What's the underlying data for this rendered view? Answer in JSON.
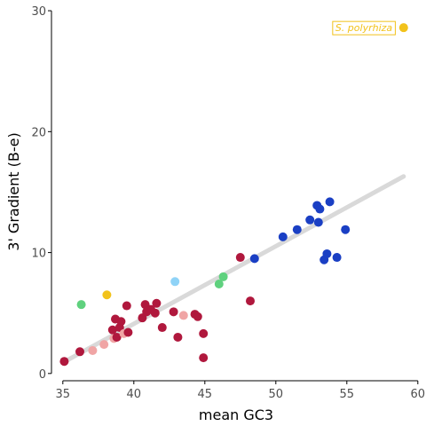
{
  "chart_data": {
    "type": "scatter",
    "title": "",
    "xlabel": "mean GC3",
    "ylabel": "3' Gradient (B-e)",
    "xlim": [
      34.2,
      60.2
    ],
    "ylim": [
      -0.6,
      30.3
    ],
    "xticks": [
      35,
      40,
      45,
      50,
      55,
      60
    ],
    "yticks": [
      0,
      10,
      20,
      30
    ],
    "grid": false,
    "legend": "none",
    "colors": {
      "crimson": "#b0183d",
      "pink": "#f0a5a5",
      "green": "#5fd17e",
      "lightblue": "#8fd3f7",
      "blue": "#1a3fc4",
      "gold": "#f2c21b",
      "trend": "#d9d9d9"
    },
    "trend_line": {
      "x": [
        35,
        59
      ],
      "y": [
        0.9,
        16.3
      ]
    },
    "points": [
      {
        "x": 35.1,
        "y": 1.0,
        "color": "crimson"
      },
      {
        "x": 36.2,
        "y": 1.8,
        "color": "crimson"
      },
      {
        "x": 36.3,
        "y": 5.7,
        "color": "green"
      },
      {
        "x": 37.1,
        "y": 1.9,
        "color": "pink"
      },
      {
        "x": 37.9,
        "y": 2.4,
        "color": "pink"
      },
      {
        "x": 38.1,
        "y": 6.5,
        "color": "gold"
      },
      {
        "x": 38.5,
        "y": 3.6,
        "color": "crimson"
      },
      {
        "x": 38.6,
        "y": 2.9,
        "color": "pink"
      },
      {
        "x": 38.7,
        "y": 4.5,
        "color": "crimson"
      },
      {
        "x": 38.8,
        "y": 3.0,
        "color": "crimson"
      },
      {
        "x": 39.0,
        "y": 3.8,
        "color": "crimson"
      },
      {
        "x": 39.1,
        "y": 4.3,
        "color": "crimson"
      },
      {
        "x": 39.3,
        "y": 3.3,
        "color": "pink"
      },
      {
        "x": 39.5,
        "y": 5.6,
        "color": "crimson"
      },
      {
        "x": 39.6,
        "y": 3.4,
        "color": "crimson"
      },
      {
        "x": 40.6,
        "y": 4.6,
        "color": "crimson"
      },
      {
        "x": 40.8,
        "y": 5.7,
        "color": "crimson"
      },
      {
        "x": 40.9,
        "y": 5.1,
        "color": "crimson"
      },
      {
        "x": 41.2,
        "y": 5.3,
        "color": "crimson"
      },
      {
        "x": 41.5,
        "y": 5.0,
        "color": "crimson"
      },
      {
        "x": 41.6,
        "y": 5.8,
        "color": "crimson"
      },
      {
        "x": 42.0,
        "y": 3.8,
        "color": "crimson"
      },
      {
        "x": 42.8,
        "y": 5.1,
        "color": "crimson"
      },
      {
        "x": 42.9,
        "y": 7.6,
        "color": "lightblue"
      },
      {
        "x": 43.1,
        "y": 3.0,
        "color": "crimson"
      },
      {
        "x": 43.5,
        "y": 4.8,
        "color": "pink"
      },
      {
        "x": 44.3,
        "y": 4.9,
        "color": "crimson"
      },
      {
        "x": 44.5,
        "y": 4.7,
        "color": "crimson"
      },
      {
        "x": 44.9,
        "y": 3.3,
        "color": "crimson"
      },
      {
        "x": 44.9,
        "y": 1.3,
        "color": "crimson"
      },
      {
        "x": 46.0,
        "y": 7.4,
        "color": "green"
      },
      {
        "x": 46.3,
        "y": 8.0,
        "color": "green"
      },
      {
        "x": 47.5,
        "y": 9.6,
        "color": "crimson"
      },
      {
        "x": 48.2,
        "y": 6.0,
        "color": "crimson"
      },
      {
        "x": 48.5,
        "y": 9.5,
        "color": "blue"
      },
      {
        "x": 50.5,
        "y": 11.3,
        "color": "blue"
      },
      {
        "x": 51.5,
        "y": 11.9,
        "color": "blue"
      },
      {
        "x": 52.4,
        "y": 12.7,
        "color": "blue"
      },
      {
        "x": 52.9,
        "y": 13.9,
        "color": "blue"
      },
      {
        "x": 53.0,
        "y": 12.5,
        "color": "blue"
      },
      {
        "x": 53.1,
        "y": 13.6,
        "color": "blue"
      },
      {
        "x": 53.4,
        "y": 9.4,
        "color": "blue"
      },
      {
        "x": 53.6,
        "y": 9.9,
        "color": "blue"
      },
      {
        "x": 53.8,
        "y": 14.2,
        "color": "blue"
      },
      {
        "x": 54.3,
        "y": 9.6,
        "color": "blue"
      },
      {
        "x": 54.9,
        "y": 11.9,
        "color": "blue"
      },
      {
        "x": 59.0,
        "y": 28.6,
        "color": "gold"
      }
    ],
    "annotations": [
      {
        "text": "S. polyrhiza",
        "x": 56.2,
        "y": 28.6,
        "color": "gold"
      }
    ]
  }
}
